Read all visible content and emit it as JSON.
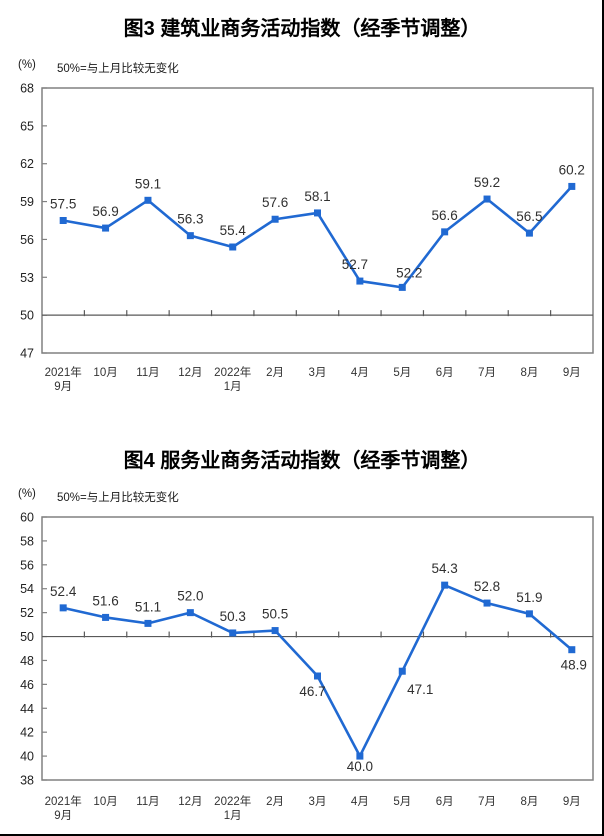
{
  "page": {
    "background": "#ffffff",
    "border_color": "#000000"
  },
  "chart_data": [
    {
      "type": "line",
      "title": "图3 建筑业商务活动指数（经季节调整）",
      "unit_label": "(%)",
      "subtitle_note": "50%=与上月比较无变化",
      "categories": [
        "2021年\n9月",
        "10月",
        "11月",
        "12月",
        "2022年\n1月",
        "2月",
        "3月",
        "4月",
        "5月",
        "6月",
        "7月",
        "8月",
        "9月"
      ],
      "values": [
        57.5,
        56.9,
        59.1,
        56.3,
        55.4,
        57.6,
        58.1,
        52.7,
        52.2,
        56.6,
        59.2,
        56.5,
        60.2
      ],
      "ylim": [
        47,
        68
      ],
      "ytick_step": 3,
      "reference_line": 50,
      "grid": false,
      "legend": "none",
      "line_color": "#2069d2",
      "marker": "square",
      "axis_color": "#808080",
      "ref_line_color": "#595959",
      "label_color": "#303030",
      "tick_label_color": "#222222",
      "label_offsets": {
        "7": [
          -5,
          -12
        ],
        "8": [
          7,
          -10
        ]
      }
    },
    {
      "type": "line",
      "title": "图4 服务业商务活动指数（经季节调整）",
      "unit_label": "(%)",
      "subtitle_note": "50%=与上月比较无变化",
      "categories": [
        "2021年\n9月",
        "10月",
        "11月",
        "12月",
        "2022年\n1月",
        "2月",
        "3月",
        "4月",
        "5月",
        "6月",
        "7月",
        "8月",
        "9月"
      ],
      "values": [
        52.4,
        51.6,
        51.1,
        52.0,
        50.3,
        50.5,
        46.7,
        40.0,
        47.1,
        54.3,
        52.8,
        51.9,
        48.9
      ],
      "ylim": [
        38,
        60
      ],
      "ytick_step": 2,
      "reference_line": 50,
      "grid": false,
      "legend": "none",
      "line_color": "#2069d2",
      "marker": "square",
      "axis_color": "#808080",
      "ref_line_color": "#595959",
      "label_color": "#303030",
      "tick_label_color": "#222222",
      "label_offsets": {
        "6": [
          -5,
          20
        ],
        "7": [
          0,
          15
        ],
        "8": [
          18,
          23
        ],
        "12": [
          2,
          20
        ]
      }
    }
  ]
}
